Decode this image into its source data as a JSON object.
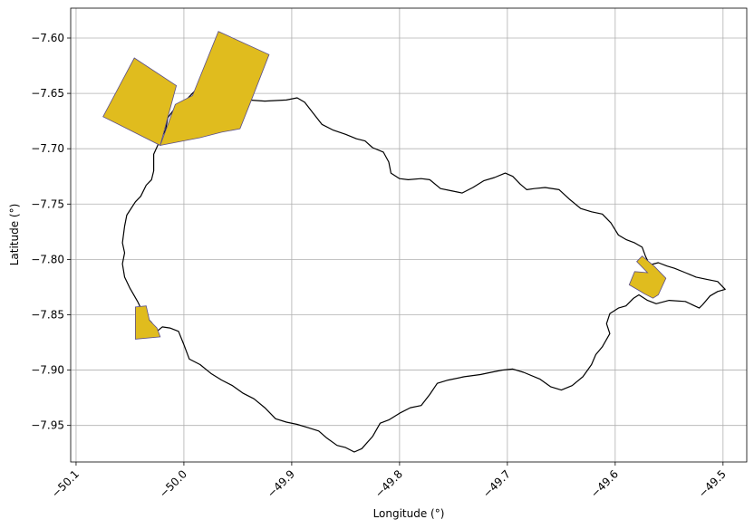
{
  "chart_data": {
    "type": "map",
    "xlabel": "Longitude (°)",
    "ylabel": "Latitude (°)",
    "xlim": [
      -50.105,
      -49.478
    ],
    "ylim": [
      -7.983,
      -7.573
    ],
    "grid": true,
    "x_ticks": [
      {
        "value": -50.1,
        "label": "−50.1"
      },
      {
        "value": -50.0,
        "label": "−50.0"
      },
      {
        "value": -49.9,
        "label": "−49.9"
      },
      {
        "value": -49.8,
        "label": "−49.8"
      },
      {
        "value": -49.7,
        "label": "−49.7"
      },
      {
        "value": -49.6,
        "label": "−49.6"
      },
      {
        "value": -49.5,
        "label": "−49.5"
      }
    ],
    "y_ticks": [
      {
        "value": -7.6,
        "label": "−7.60"
      },
      {
        "value": -7.65,
        "label": "−7.65"
      },
      {
        "value": -7.7,
        "label": "−7.70"
      },
      {
        "value": -7.75,
        "label": "−7.75"
      },
      {
        "value": -7.8,
        "label": "−7.80"
      },
      {
        "value": -7.85,
        "label": "−7.85"
      },
      {
        "value": -7.9,
        "label": "−7.90"
      },
      {
        "value": -7.95,
        "label": "−7.95"
      }
    ],
    "boundary_color": "#000000",
    "area_fill": "#e0bc1e",
    "area_edge": "#5a4e8c",
    "boundary": [
      [
        -49.982,
        -7.643
      ],
      [
        -49.975,
        -7.641
      ],
      [
        -49.968,
        -7.645
      ],
      [
        -49.955,
        -7.652
      ],
      [
        -49.94,
        -7.656
      ],
      [
        -49.925,
        -7.657
      ],
      [
        -49.905,
        -7.656
      ],
      [
        -49.895,
        -7.654
      ],
      [
        -49.888,
        -7.658
      ],
      [
        -49.88,
        -7.668
      ],
      [
        -49.872,
        -7.678
      ],
      [
        -49.862,
        -7.683
      ],
      [
        -49.85,
        -7.687
      ],
      [
        -49.84,
        -7.691
      ],
      [
        -49.832,
        -7.693
      ],
      [
        -49.825,
        -7.699
      ],
      [
        -49.815,
        -7.703
      ],
      [
        -49.81,
        -7.712
      ],
      [
        -49.808,
        -7.722
      ],
      [
        -49.8,
        -7.727
      ],
      [
        -49.792,
        -7.728
      ],
      [
        -49.78,
        -7.727
      ],
      [
        -49.772,
        -7.728
      ],
      [
        -49.762,
        -7.736
      ],
      [
        -49.752,
        -7.738
      ],
      [
        -49.742,
        -7.74
      ],
      [
        -49.732,
        -7.735
      ],
      [
        -49.722,
        -7.729
      ],
      [
        -49.712,
        -7.726
      ],
      [
        -49.702,
        -7.722
      ],
      [
        -49.695,
        -7.725
      ],
      [
        -49.688,
        -7.732
      ],
      [
        -49.682,
        -7.737
      ],
      [
        -49.675,
        -7.736
      ],
      [
        -49.665,
        -7.735
      ],
      [
        -49.652,
        -7.737
      ],
      [
        -49.642,
        -7.746
      ],
      [
        -49.632,
        -7.754
      ],
      [
        -49.622,
        -7.757
      ],
      [
        -49.612,
        -7.759
      ],
      [
        -49.604,
        -7.767
      ],
      [
        -49.597,
        -7.778
      ],
      [
        -49.59,
        -7.782
      ],
      [
        -49.582,
        -7.785
      ],
      [
        -49.575,
        -7.789
      ],
      [
        -49.572,
        -7.797
      ],
      [
        -49.568,
        -7.805
      ],
      [
        -49.56,
        -7.803
      ],
      [
        -49.552,
        -7.806
      ],
      [
        -49.545,
        -7.808
      ],
      [
        -49.535,
        -7.812
      ],
      [
        -49.525,
        -7.816
      ],
      [
        -49.515,
        -7.818
      ],
      [
        -49.505,
        -7.82
      ],
      [
        -49.498,
        -7.827
      ],
      [
        -49.505,
        -7.829
      ],
      [
        -49.512,
        -7.833
      ],
      [
        -49.519,
        -7.841
      ],
      [
        -49.522,
        -7.844
      ],
      [
        -49.535,
        -7.838
      ],
      [
        -49.55,
        -7.837
      ],
      [
        -49.562,
        -7.84
      ],
      [
        -49.57,
        -7.837
      ],
      [
        -49.578,
        -7.832
      ],
      [
        -49.583,
        -7.835
      ],
      [
        -49.59,
        -7.842
      ],
      [
        -49.597,
        -7.844
      ],
      [
        -49.605,
        -7.849
      ],
      [
        -49.608,
        -7.858
      ],
      [
        -49.605,
        -7.867
      ],
      [
        -49.612,
        -7.879
      ],
      [
        -49.618,
        -7.886
      ],
      [
        -49.622,
        -7.895
      ],
      [
        -49.63,
        -7.906
      ],
      [
        -49.64,
        -7.914
      ],
      [
        -49.65,
        -7.918
      ],
      [
        -49.66,
        -7.915
      ],
      [
        -49.67,
        -7.908
      ],
      [
        -49.685,
        -7.902
      ],
      [
        -49.695,
        -7.899
      ],
      [
        -49.705,
        -7.9
      ],
      [
        -49.715,
        -7.902
      ],
      [
        -49.725,
        -7.904
      ],
      [
        -49.74,
        -7.906
      ],
      [
        -49.755,
        -7.909
      ],
      [
        -49.765,
        -7.912
      ],
      [
        -49.772,
        -7.922
      ],
      [
        -49.78,
        -7.932
      ],
      [
        -49.79,
        -7.934
      ],
      [
        -49.8,
        -7.939
      ],
      [
        -49.81,
        -7.945
      ],
      [
        -49.818,
        -7.948
      ],
      [
        -49.825,
        -7.96
      ],
      [
        -49.835,
        -7.971
      ],
      [
        -49.842,
        -7.974
      ],
      [
        -49.85,
        -7.97
      ],
      [
        -49.858,
        -7.968
      ],
      [
        -49.868,
        -7.961
      ],
      [
        -49.875,
        -7.955
      ],
      [
        -49.885,
        -7.952
      ],
      [
        -49.895,
        -7.949
      ],
      [
        -49.905,
        -7.947
      ],
      [
        -49.915,
        -7.944
      ],
      [
        -49.925,
        -7.934
      ],
      [
        -49.935,
        -7.926
      ],
      [
        -49.945,
        -7.921
      ],
      [
        -49.955,
        -7.914
      ],
      [
        -49.965,
        -7.909
      ],
      [
        -49.975,
        -7.903
      ],
      [
        -49.985,
        -7.895
      ],
      [
        -49.995,
        -7.89
      ],
      [
        -50.0,
        -7.877
      ],
      [
        -50.005,
        -7.865
      ],
      [
        -50.013,
        -7.862
      ],
      [
        -50.02,
        -7.861
      ],
      [
        -50.025,
        -7.865
      ],
      [
        -50.03,
        -7.857
      ],
      [
        -50.037,
        -7.85
      ],
      [
        -50.043,
        -7.838
      ],
      [
        -50.05,
        -7.826
      ],
      [
        -50.055,
        -7.816
      ],
      [
        -50.057,
        -7.804
      ],
      [
        -50.055,
        -7.794
      ],
      [
        -50.057,
        -7.785
      ],
      [
        -50.055,
        -7.77
      ],
      [
        -50.053,
        -7.76
      ],
      [
        -50.045,
        -7.748
      ],
      [
        -50.04,
        -7.743
      ],
      [
        -50.035,
        -7.733
      ],
      [
        -50.03,
        -7.728
      ],
      [
        -50.028,
        -7.72
      ],
      [
        -50.028,
        -7.705
      ],
      [
        -50.022,
        -7.692
      ],
      [
        -50.017,
        -7.683
      ],
      [
        -50.015,
        -7.672
      ],
      [
        -50.008,
        -7.663
      ],
      [
        -49.998,
        -7.656
      ],
      [
        -49.99,
        -7.648
      ],
      [
        -49.982,
        -7.643
      ]
    ],
    "areas": [
      [
        [
          -50.075,
          -7.671
        ],
        [
          -50.046,
          -7.618
        ],
        [
          -50.007,
          -7.643
        ],
        [
          -50.022,
          -7.697
        ]
      ],
      [
        [
          -50.022,
          -7.697
        ],
        [
          -50.008,
          -7.66
        ],
        [
          -49.992,
          -7.652
        ],
        [
          -49.968,
          -7.594
        ],
        [
          -49.921,
          -7.615
        ],
        [
          -49.937,
          -7.655
        ],
        [
          -49.948,
          -7.682
        ],
        [
          -49.965,
          -7.685
        ],
        [
          -49.985,
          -7.69
        ]
      ],
      [
        [
          -50.045,
          -7.843
        ],
        [
          -50.035,
          -7.842
        ],
        [
          -50.032,
          -7.855
        ],
        [
          -50.025,
          -7.862
        ],
        [
          -50.022,
          -7.87
        ],
        [
          -50.045,
          -7.872
        ]
      ],
      [
        [
          -49.575,
          -7.797
        ],
        [
          -49.564,
          -7.806
        ],
        [
          -49.553,
          -7.817
        ],
        [
          -49.56,
          -7.832
        ],
        [
          -49.565,
          -7.835
        ],
        [
          -49.573,
          -7.831
        ],
        [
          -49.578,
          -7.828
        ],
        [
          -49.587,
          -7.823
        ],
        [
          -49.582,
          -7.811
        ],
        [
          -49.57,
          -7.812
        ],
        [
          -49.58,
          -7.802
        ]
      ]
    ]
  }
}
